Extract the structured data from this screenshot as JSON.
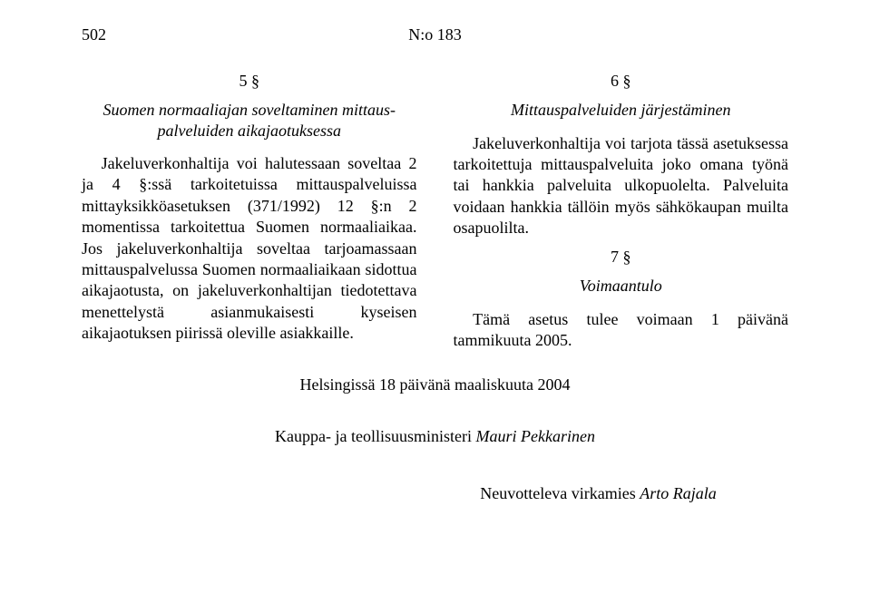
{
  "header": {
    "page_number": "502",
    "doc_number": "N:o 183"
  },
  "left": {
    "sec5_num": "5 §",
    "sec5_title": "Suomen normaaliajan soveltaminen mittaus-palveluiden aikajaotuksessa",
    "sec5_para": "Jakeluverkonhaltija voi halutessaan soveltaa 2 ja 4 §:ssä tarkoitetuissa mittauspalveluissa mittayksikköasetuksen (371/1992) 12 §:n 2 momentissa tarkoitettua Suomen normaaliaikaa. Jos jakeluverkonhaltija soveltaa tarjoamassaan mittauspalvelussa Suomen normaaliaikaan sidottua aikajaotusta, on jakeluverkonhaltijan tiedotettava menettelystä asianmukaisesti kyseisen aikajaotuksen piirissä oleville asiakkaille."
  },
  "right": {
    "sec6_num": "6 §",
    "sec6_title": "Mittauspalveluiden järjestäminen",
    "sec6_para": "Jakeluverkonhaltija voi tarjota tässä asetuksessa tarkoitettuja mittauspalveluita joko omana työnä tai hankkia palveluita ulkopuolelta. Palveluita voidaan hankkia tällöin myös sähkökaupan muilta osapuolilta.",
    "sec7_num": "7 §",
    "sec7_title": "Voimaantulo",
    "sec7_para": "Tämä asetus tulee voimaan 1 päivänä tammikuuta 2005."
  },
  "footer": {
    "date_line": "Helsingissä 18 päivänä maaliskuuta 2004",
    "minister_prefix": "Kauppa- ja teollisuusministeri ",
    "minister_name": "Mauri Pekkarinen",
    "assistant_prefix": "Neuvotteleva virkamies ",
    "assistant_name": "Arto Rajala"
  }
}
